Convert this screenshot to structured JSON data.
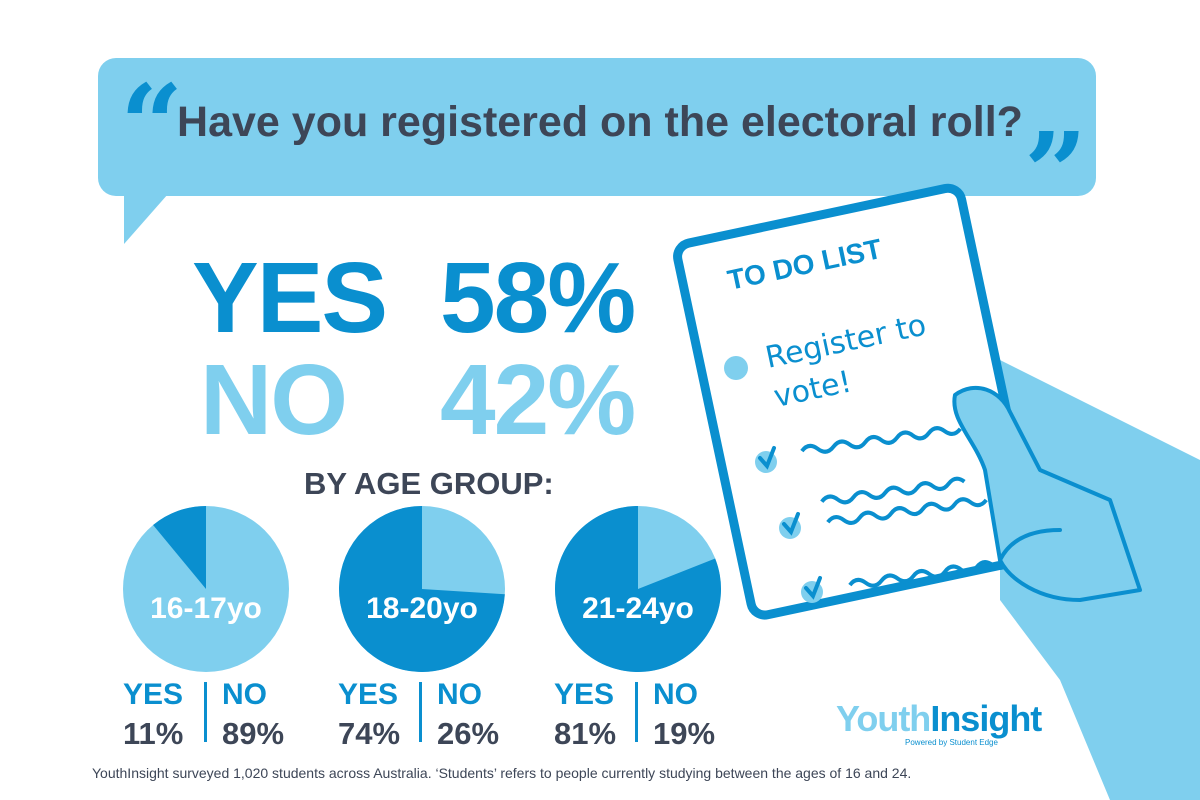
{
  "question": "Have you registered on the electoral roll?",
  "overall": {
    "yes_label": "YES",
    "yes_value": "58%",
    "no_label": "NO",
    "no_value": "42%"
  },
  "age_heading": "BY AGE GROUP:",
  "chart_data": {
    "type": "pie",
    "title": "Have you registered on the electoral roll?",
    "overall": {
      "YES": 58,
      "NO": 42
    },
    "groups": [
      {
        "name": "16-17yo",
        "yes": 11,
        "no": 89,
        "yes_text": "11%",
        "no_text": "89%"
      },
      {
        "name": "18-20yo",
        "yes": 74,
        "no": 26,
        "yes_text": "74%",
        "no_text": "26%"
      },
      {
        "name": "21-24yo",
        "yes": 81,
        "no": 19,
        "yes_text": "81%",
        "no_text": "19%"
      }
    ],
    "legend": {
      "yes": "YES",
      "no": "NO"
    },
    "colors": {
      "yes": "#0a8fcf",
      "no": "#7fcfee"
    }
  },
  "todo": {
    "title": "TO DO LIST",
    "item": "Register to vote!"
  },
  "brand": {
    "name_part1": "Youth",
    "name_part2": "Insight",
    "tagline": "Powered by Student Edge"
  },
  "footnote": "YouthInsight surveyed 1,020 students across Australia. ‘Students’ refers to people currently studying between the ages of 16 and 24.",
  "icons": {
    "open_quote": "quote-open-icon",
    "close_quote": "quote-close-icon",
    "checklist": "clipboard-icon",
    "hand": "hand-icon"
  }
}
